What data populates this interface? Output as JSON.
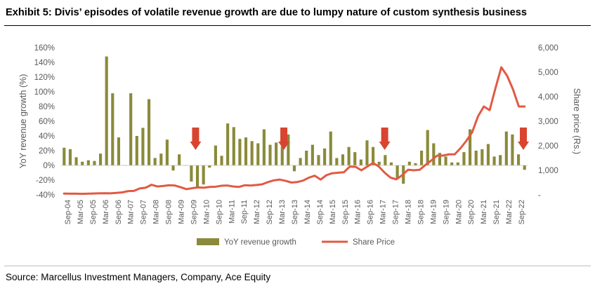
{
  "header": {
    "title": "Exhibit 5: Divis’ episodes of volatile revenue growth are due to lumpy nature of custom synthesis business"
  },
  "footer": {
    "source": "Source: Marcellus Investment Managers, Company, Ace Equity"
  },
  "colors": {
    "bars": "#8a8a3a",
    "line": "#e15a43",
    "arrow": "#d9442e",
    "axis_text": "#595959",
    "grid": "#d9d9d9"
  },
  "chart_data": {
    "type": "bar",
    "title": "",
    "ylabel": "YoY revenue growth (%)",
    "y2label": "Share price (Rs.)",
    "ylim": [
      -40,
      160
    ],
    "y2lim": [
      0,
      6000
    ],
    "y_ticks": [
      "160%",
      "140%",
      "120%",
      "100%",
      "80%",
      "60%",
      "40%",
      "20%",
      "0%",
      "-20%",
      "-40%"
    ],
    "y2_ticks": [
      "6,000",
      "5,000",
      "4,000",
      "3,000",
      "2,000",
      "1,000",
      "-"
    ],
    "x_tick_labels": [
      "Sep-04",
      "Mar-05",
      "Sep-05",
      "Mar-06",
      "Sep-06",
      "Mar-07",
      "Sep-07",
      "Mar-08",
      "Sep-08",
      "Mar-09",
      "Sep-09",
      "Mar-10",
      "Sep-10",
      "Mar-11",
      "Sep-11",
      "Mar-12",
      "Sep-12",
      "Mar-13",
      "Sep-13",
      "Mar-14",
      "Sep-14",
      "Mar-15",
      "Sep-15",
      "Mar-16",
      "Sep-16",
      "Mar-17",
      "Sep-17",
      "Mar-18",
      "Sep-18",
      "Mar-19",
      "Sep-19",
      "Mar-20",
      "Sep-20",
      "Mar-21",
      "Sep-21",
      "Mar-22",
      "Sep-22"
    ],
    "legend_position": "bottom",
    "grid": false,
    "series": [
      {
        "name": "YoY revenue growth",
        "type": "bar",
        "axis": "left",
        "values": [
          24,
          22,
          11,
          5,
          7,
          6,
          16,
          148,
          98,
          38,
          0,
          98,
          40,
          51,
          90,
          10,
          16,
          35,
          -7,
          15,
          0,
          -22,
          -31,
          -26,
          -3,
          27,
          13,
          57,
          52,
          36,
          38,
          33,
          30,
          49,
          28,
          31,
          26,
          42,
          -8,
          10,
          20,
          28,
          14,
          23,
          46,
          10,
          15,
          25,
          18,
          8,
          34,
          25,
          5,
          14,
          4,
          -18,
          -25,
          5,
          3,
          20,
          48,
          30,
          17,
          12,
          4,
          4,
          18,
          49,
          20,
          22,
          29,
          12,
          14,
          46,
          42,
          15,
          -6
        ]
      },
      {
        "name": "Share Price",
        "type": "line",
        "axis": "right",
        "values": [
          50,
          45,
          45,
          40,
          45,
          55,
          60,
          65,
          60,
          80,
          100,
          150,
          160,
          260,
          290,
          410,
          340,
          360,
          390,
          380,
          310,
          230,
          270,
          300,
          290,
          320,
          330,
          370,
          380,
          340,
          320,
          390,
          380,
          400,
          430,
          520,
          590,
          620,
          570,
          500,
          520,
          580,
          700,
          780,
          620,
          800,
          880,
          900,
          920,
          1150,
          1140,
          1000,
          1150,
          1300,
          1150,
          900,
          700,
          630,
          800,
          1020,
          1000,
          1020,
          1220,
          1400,
          1600,
          1600,
          1650,
          1650,
          1900,
          2200,
          2550,
          3200,
          3600,
          3450,
          4350,
          5200,
          4850,
          4300,
          3600,
          3600
        ]
      }
    ],
    "annotations": [
      {
        "type": "down-arrow",
        "near": "Sep-09"
      },
      {
        "type": "down-arrow",
        "near": "Mar-13"
      },
      {
        "type": "down-arrow",
        "near": "Mar-17"
      },
      {
        "type": "down-arrow",
        "near": "Sep-22"
      }
    ]
  }
}
